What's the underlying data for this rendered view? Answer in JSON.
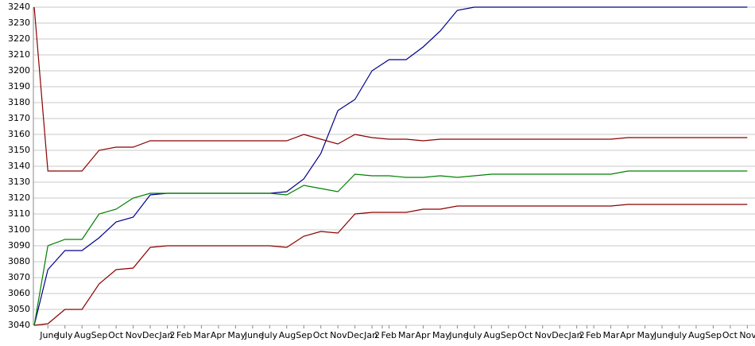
{
  "chart_data": {
    "type": "line",
    "x": [
      -0.8,
      0,
      1,
      2,
      3,
      4,
      5,
      6,
      7,
      8,
      9,
      10,
      11,
      12,
      13,
      14,
      15,
      16,
      17,
      18,
      19,
      20,
      21,
      22,
      23,
      24,
      25,
      26,
      27,
      28,
      29,
      30,
      31,
      32,
      33,
      34,
      35,
      36,
      37,
      38,
      39,
      40,
      41
    ],
    "series": [
      {
        "color": "#00008b",
        "values": [
          3040,
          3075,
          3087,
          3087,
          3095,
          3105,
          3108,
          3122,
          3123,
          3123,
          3123,
          3123,
          3123,
          3123,
          3123,
          3124,
          3132,
          3148,
          3175,
          3182,
          3200,
          3207,
          3207,
          3215,
          3225,
          3238,
          3240,
          3240,
          3240,
          3240,
          3240,
          3240,
          3240,
          3240,
          3240,
          3240,
          3240,
          3240,
          3240,
          3240,
          3240,
          3240,
          3240
        ]
      },
      {
        "color": "#008000",
        "values": [
          3040,
          3090,
          3094,
          3094,
          3110,
          3113,
          3120,
          3123,
          3123,
          3123,
          3123,
          3123,
          3123,
          3123,
          3123,
          3122,
          3128,
          3126,
          3124,
          3135,
          3134,
          3134,
          3133,
          3133,
          3134,
          3133,
          3134,
          3135,
          3135,
          3135,
          3135,
          3135,
          3135,
          3135,
          3135,
          3137,
          3137,
          3137,
          3137,
          3137,
          3137,
          3137,
          3137
        ]
      },
      {
        "color": "#8b0000",
        "values": [
          3240,
          3137,
          3137,
          3137,
          3150,
          3152,
          3152,
          3156,
          3156,
          3156,
          3156,
          3156,
          3156,
          3156,
          3156,
          3156,
          3160,
          3157,
          3154,
          3160,
          3158,
          3157,
          3157,
          3156,
          3157,
          3157,
          3157,
          3157,
          3157,
          3157,
          3157,
          3157,
          3157,
          3157,
          3157,
          3158,
          3158,
          3158,
          3158,
          3158,
          3158,
          3158,
          3158
        ]
      },
      {
        "color": "#8b0000",
        "values": [
          3040,
          3041,
          3050,
          3050,
          3066,
          3075,
          3076,
          3089,
          3090,
          3090,
          3090,
          3090,
          3090,
          3090,
          3090,
          3089,
          3096,
          3099,
          3098,
          3110,
          3111,
          3111,
          3111,
          3113,
          3113,
          3115,
          3115,
          3115,
          3115,
          3115,
          3115,
          3115,
          3115,
          3115,
          3115,
          3116,
          3116,
          3116,
          3116,
          3116,
          3116,
          3116,
          3116
        ]
      }
    ],
    "xlim": [
      -0.85,
      41.45
    ],
    "xticks": [
      {
        "value": 0,
        "label": "June"
      },
      {
        "value": 1,
        "label": "July"
      },
      {
        "value": 2,
        "label": "Aug"
      },
      {
        "value": 3,
        "label": "Sep"
      },
      {
        "value": 4,
        "label": "Oct"
      },
      {
        "value": 5,
        "label": "Nov"
      },
      {
        "value": 6,
        "label": "Dec"
      },
      {
        "value": 7,
        "label": "Jan"
      },
      {
        "value": 7.6,
        "label": "2"
      },
      {
        "value": 8,
        "label": "Feb"
      },
      {
        "value": 9,
        "label": "Mar"
      },
      {
        "value": 10,
        "label": "Apr"
      },
      {
        "value": 11,
        "label": "May"
      },
      {
        "value": 12,
        "label": "June"
      },
      {
        "value": 13,
        "label": "July"
      },
      {
        "value": 14,
        "label": "Aug"
      },
      {
        "value": 15,
        "label": "Sep"
      },
      {
        "value": 16,
        "label": "Oct"
      },
      {
        "value": 17,
        "label": "Nov"
      },
      {
        "value": 18,
        "label": "Dec"
      },
      {
        "value": 19,
        "label": "Jan"
      },
      {
        "value": 19.6,
        "label": "2"
      },
      {
        "value": 20,
        "label": "Feb"
      },
      {
        "value": 21,
        "label": "Mar"
      },
      {
        "value": 22,
        "label": "Apr"
      },
      {
        "value": 23,
        "label": "May"
      },
      {
        "value": 24,
        "label": "June"
      },
      {
        "value": 25,
        "label": "July"
      },
      {
        "value": 26,
        "label": "Aug"
      },
      {
        "value": 27,
        "label": "Sep"
      },
      {
        "value": 28,
        "label": "Oct"
      },
      {
        "value": 29,
        "label": "Nov"
      },
      {
        "value": 30,
        "label": "Dec"
      },
      {
        "value": 31,
        "label": "Jan"
      },
      {
        "value": 31.6,
        "label": "2"
      },
      {
        "value": 32,
        "label": "Feb"
      },
      {
        "value": 33,
        "label": "Mar"
      },
      {
        "value": 34,
        "label": "Apr"
      },
      {
        "value": 35,
        "label": "May"
      },
      {
        "value": 36,
        "label": "June"
      },
      {
        "value": 37,
        "label": "July"
      },
      {
        "value": 38,
        "label": "Aug"
      },
      {
        "value": 39,
        "label": "Sep"
      },
      {
        "value": 40,
        "label": "Oct"
      },
      {
        "value": 41,
        "label": "Nov"
      }
    ],
    "ylim": [
      3040,
      3240
    ],
    "yticks": [
      3040,
      3050,
      3060,
      3070,
      3080,
      3090,
      3100,
      3110,
      3120,
      3130,
      3140,
      3150,
      3160,
      3170,
      3180,
      3190,
      3200,
      3210,
      3220,
      3230,
      3240
    ],
    "grid": true
  }
}
